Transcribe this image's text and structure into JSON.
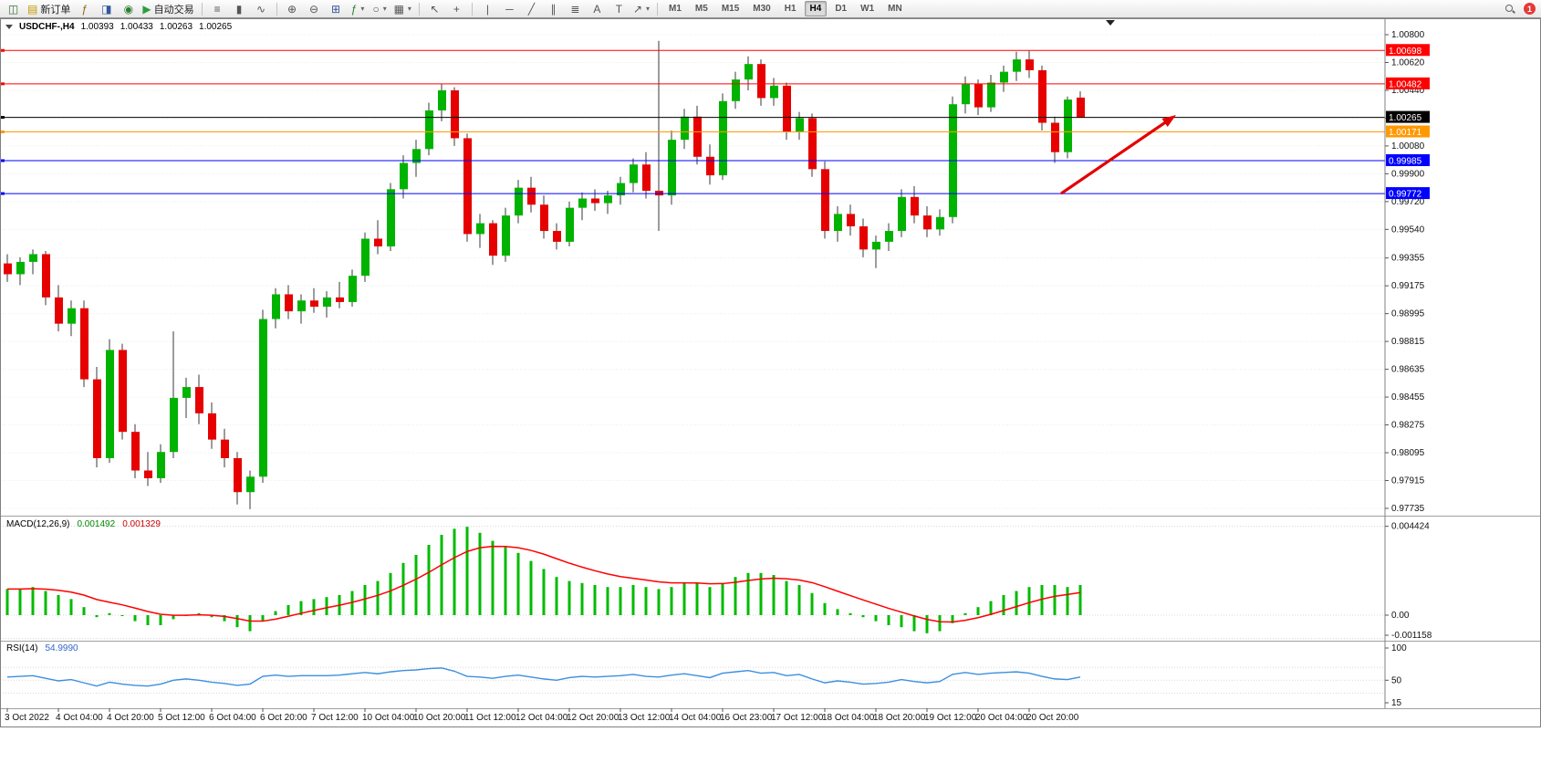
{
  "toolbar": {
    "labels": {
      "new_order": "新订单",
      "autotrading": "自动交易"
    },
    "notification_count": "1",
    "timeframes": [
      "M1",
      "M5",
      "M15",
      "M30",
      "H1",
      "H4",
      "D1",
      "W1",
      "MN"
    ],
    "active_timeframe": "H4",
    "items": [
      {
        "kind": "icon",
        "name": "charts-icon",
        "glyph": "◫",
        "color": "#3a6f3a"
      },
      {
        "kind": "button",
        "name": "new-order-button",
        "glyph": "▤",
        "color": "#c59a00",
        "label_key": "new_order"
      },
      {
        "kind": "icon",
        "name": "indicator-list-icon",
        "glyph": "ƒ",
        "color": "#8a6d00"
      },
      {
        "kind": "icon",
        "name": "market-watch-icon",
        "glyph": "◨",
        "color": "#33589c"
      },
      {
        "kind": "icon",
        "name": "navigator-icon",
        "glyph": "◉",
        "color": "#2e7d32"
      },
      {
        "kind": "button",
        "name": "autotrading-button",
        "glyph": "▶",
        "color": "#2e9e3f",
        "label_key": "autotrading"
      },
      {
        "kind": "sep"
      },
      {
        "kind": "icon",
        "name": "bar-chart-icon",
        "glyph": "≡"
      },
      {
        "kind": "icon",
        "name": "candlestick-chart-icon",
        "glyph": "▮"
      },
      {
        "kind": "icon",
        "name": "line-chart-icon",
        "glyph": "∿"
      },
      {
        "kind": "sep"
      },
      {
        "kind": "icon",
        "name": "zoom-in-icon",
        "glyph": "⊕"
      },
      {
        "kind": "icon",
        "name": "zoom-out-icon",
        "glyph": "⊖"
      },
      {
        "kind": "icon",
        "name": "tile-windows-icon",
        "glyph": "⊞",
        "color": "#33589c"
      },
      {
        "kind": "icon",
        "name": "indicators-icon",
        "glyph": "ƒ",
        "color": "#2e7d32",
        "dropdown": true
      },
      {
        "kind": "icon",
        "name": "periods-icon",
        "glyph": "○",
        "dropdown": true
      },
      {
        "kind": "icon",
        "name": "templates-icon",
        "glyph": "▦",
        "dropdown": true
      },
      {
        "kind": "sep"
      },
      {
        "kind": "icon",
        "name": "cursor-icon",
        "glyph": "↖"
      },
      {
        "kind": "icon",
        "name": "crosshair-icon",
        "glyph": "+"
      },
      {
        "kind": "sep"
      },
      {
        "kind": "icon",
        "name": "vertical-line-icon",
        "glyph": "|"
      },
      {
        "kind": "icon",
        "name": "horizontal-line-icon",
        "glyph": "─"
      },
      {
        "kind": "icon",
        "name": "trendline-icon",
        "glyph": "╱"
      },
      {
        "kind": "icon",
        "name": "equidistant-channel-icon",
        "glyph": "∥"
      },
      {
        "kind": "icon",
        "name": "fibonacci-icon",
        "glyph": "≣"
      },
      {
        "kind": "icon",
        "name": "text-icon",
        "glyph": "A"
      },
      {
        "kind": "icon",
        "name": "text-label-icon",
        "glyph": "T"
      },
      {
        "kind": "icon",
        "name": "arrows-icon",
        "glyph": "↗",
        "dropdown": true
      },
      {
        "kind": "sep"
      },
      {
        "kind": "timeframes"
      },
      {
        "kind": "spacer"
      },
      {
        "kind": "icon",
        "name": "search-icon"
      },
      {
        "kind": "badge",
        "name": "notification-badge",
        "label_key": "notification_count"
      }
    ]
  },
  "chart": {
    "symbol_period": "USDCHF-,H4",
    "open": "1.00393",
    "high": "1.00433",
    "low": "1.00263",
    "close": "1.00265"
  },
  "chart_data": {
    "type": "candlestick",
    "symbol": "USDCHF-",
    "timeframe": "H4",
    "style": {
      "bull_color": "#00b300",
      "bear_color": "#e60000",
      "wick_color": "#3a3a3a",
      "macd_bar_color": "#00bb00",
      "macd_signal_color": "#ff0000",
      "rsi_line_color": "#3c8fde",
      "arrow_color": "#e30000"
    },
    "price_axis": {
      "ticks": [
        "1.00800",
        "1.00620",
        "1.00440",
        "1.00260",
        "1.00080",
        "0.99900",
        "0.99720",
        "0.99540",
        "0.99355",
        "0.99175",
        "0.98995",
        "0.98815",
        "0.98635",
        "0.98455",
        "0.98275",
        "0.98095",
        "0.97915",
        "0.97735"
      ]
    },
    "hlines": [
      {
        "price": 1.00698,
        "color": "#ff0000",
        "label": "1.00698"
      },
      {
        "price": 1.00482,
        "color": "#ff0000",
        "label": "1.00482"
      },
      {
        "price": 1.00265,
        "color": "#000000",
        "label": "1.00265"
      },
      {
        "price": 1.00171,
        "color": "#ff9900",
        "label": "1.00171"
      },
      {
        "price": 0.99985,
        "color": "#0000ff",
        "label": "0.99985"
      },
      {
        "price": 0.99772,
        "color": "#0000ff",
        "label": "0.99772"
      }
    ],
    "arrow": {
      "from_index": 82.5,
      "from_price": 0.99772,
      "to_index": 91.5,
      "to_price": 1.0028
    },
    "candles": [
      [
        0.9932,
        0.9938,
        0.992,
        0.9925
      ],
      [
        0.9925,
        0.9936,
        0.9918,
        0.9933
      ],
      [
        0.9933,
        0.9941,
        0.9925,
        0.9938
      ],
      [
        0.9938,
        0.994,
        0.9905,
        0.991
      ],
      [
        0.991,
        0.9918,
        0.9888,
        0.9893
      ],
      [
        0.9893,
        0.9908,
        0.9885,
        0.9903
      ],
      [
        0.9903,
        0.9908,
        0.9852,
        0.9857
      ],
      [
        0.9857,
        0.9865,
        0.98,
        0.9806
      ],
      [
        0.9806,
        0.9883,
        0.9803,
        0.9876
      ],
      [
        0.9876,
        0.988,
        0.9818,
        0.9823
      ],
      [
        0.9823,
        0.9828,
        0.9793,
        0.9798
      ],
      [
        0.9798,
        0.981,
        0.9788,
        0.9793
      ],
      [
        0.9793,
        0.9815,
        0.979,
        0.981
      ],
      [
        0.981,
        0.9888,
        0.9806,
        0.9845
      ],
      [
        0.9845,
        0.9858,
        0.9832,
        0.9852
      ],
      [
        0.9852,
        0.986,
        0.9828,
        0.9835
      ],
      [
        0.9835,
        0.9842,
        0.9812,
        0.9818
      ],
      [
        0.9818,
        0.9825,
        0.98,
        0.9806
      ],
      [
        0.9806,
        0.981,
        0.9776,
        0.9784
      ],
      [
        0.9784,
        0.9798,
        0.9773,
        0.9794
      ],
      [
        0.9794,
        0.9902,
        0.979,
        0.9896
      ],
      [
        0.9896,
        0.9916,
        0.989,
        0.9912
      ],
      [
        0.9912,
        0.9918,
        0.9896,
        0.9901
      ],
      [
        0.9901,
        0.9912,
        0.9893,
        0.9908
      ],
      [
        0.9908,
        0.9916,
        0.99,
        0.9904
      ],
      [
        0.9904,
        0.9914,
        0.9897,
        0.991
      ],
      [
        0.991,
        0.992,
        0.9903,
        0.9907
      ],
      [
        0.9907,
        0.9928,
        0.9904,
        0.9924
      ],
      [
        0.9924,
        0.9952,
        0.992,
        0.9948
      ],
      [
        0.9948,
        0.996,
        0.9938,
        0.9943
      ],
      [
        0.9943,
        0.9984,
        0.994,
        0.998
      ],
      [
        0.998,
        1.0002,
        0.9974,
        0.9997
      ],
      [
        0.9997,
        1.0012,
        0.9988,
        1.0006
      ],
      [
        1.0006,
        1.0036,
        1.0002,
        1.0031
      ],
      [
        1.0031,
        1.0048,
        1.0024,
        1.0044
      ],
      [
        1.0044,
        1.0046,
        1.0008,
        1.0013
      ],
      [
        1.0013,
        1.0016,
        0.9946,
        0.9951
      ],
      [
        0.9951,
        0.9964,
        0.9942,
        0.9958
      ],
      [
        0.9958,
        0.996,
        0.9931,
        0.9937
      ],
      [
        0.9937,
        0.9968,
        0.9933,
        0.9963
      ],
      [
        0.9963,
        0.9986,
        0.9958,
        0.9981
      ],
      [
        0.9981,
        0.9988,
        0.9965,
        0.997
      ],
      [
        0.997,
        0.9976,
        0.9948,
        0.9953
      ],
      [
        0.9953,
        0.9958,
        0.9941,
        0.9946
      ],
      [
        0.9946,
        0.9972,
        0.9943,
        0.9968
      ],
      [
        0.9968,
        0.9978,
        0.996,
        0.9974
      ],
      [
        0.9974,
        0.998,
        0.9966,
        0.9971
      ],
      [
        0.9971,
        0.9979,
        0.9964,
        0.9976
      ],
      [
        0.9976,
        0.9988,
        0.997,
        0.9984
      ],
      [
        0.9984,
        1.0,
        0.9978,
        0.9996
      ],
      [
        0.9996,
        1.0004,
        0.9974,
        0.9979
      ],
      [
        0.9979,
        1.0076,
        0.9953,
        0.9976
      ],
      [
        0.9976,
        1.0018,
        0.997,
        1.0012
      ],
      [
        1.0012,
        1.0032,
        1.0006,
        1.0027
      ],
      [
        1.0027,
        1.0034,
        0.9996,
        1.0001
      ],
      [
        1.0001,
        1.0009,
        0.9983,
        0.9989
      ],
      [
        0.9989,
        1.0042,
        0.9986,
        1.0037
      ],
      [
        1.0037,
        1.0056,
        1.0032,
        1.0051
      ],
      [
        1.0051,
        1.0066,
        1.0044,
        1.0061
      ],
      [
        1.0061,
        1.0064,
        1.0034,
        1.0039
      ],
      [
        1.0039,
        1.0052,
        1.0034,
        1.0047
      ],
      [
        1.0047,
        1.0049,
        1.0012,
        1.0017
      ],
      [
        1.0017,
        1.003,
        1.0012,
        1.0026
      ],
      [
        1.0026,
        1.0029,
        0.9988,
        0.9993
      ],
      [
        0.9993,
        0.9998,
        0.9948,
        0.9953
      ],
      [
        0.9953,
        0.9969,
        0.9946,
        0.9964
      ],
      [
        0.9964,
        0.997,
        0.995,
        0.9956
      ],
      [
        0.9956,
        0.9961,
        0.9936,
        0.9941
      ],
      [
        0.9941,
        0.995,
        0.9929,
        0.9946
      ],
      [
        0.9946,
        0.9958,
        0.994,
        0.9953
      ],
      [
        0.9953,
        0.998,
        0.9949,
        0.9975
      ],
      [
        0.9975,
        0.9982,
        0.9958,
        0.9963
      ],
      [
        0.9963,
        0.9969,
        0.9949,
        0.9954
      ],
      [
        0.9954,
        0.9967,
        0.995,
        0.9962
      ],
      [
        0.9962,
        1.004,
        0.9958,
        1.0035
      ],
      [
        1.0035,
        1.0053,
        1.0029,
        1.0048
      ],
      [
        1.0048,
        1.0051,
        1.0028,
        1.0033
      ],
      [
        1.0033,
        1.0054,
        1.003,
        1.0049
      ],
      [
        1.0049,
        1.006,
        1.0043,
        1.0056
      ],
      [
        1.0056,
        1.0069,
        1.005,
        1.0064
      ],
      [
        1.0064,
        1.00695,
        1.0052,
        1.0057
      ],
      [
        1.0057,
        1.006,
        1.0018,
        1.0023
      ],
      [
        1.0023,
        1.0027,
        0.9997,
        1.0004
      ],
      [
        1.0004,
        1.004,
        1.0,
        1.0038
      ],
      [
        1.00393,
        1.00433,
        1.00263,
        1.00265
      ]
    ],
    "time_labels": [
      "3 Oct 2022",
      "4 Oct 04:00",
      "4 Oct 20:00",
      "5 Oct 12:00",
      "6 Oct 04:00",
      "6 Oct 20:00",
      "7 Oct 12:00",
      "10 Oct 04:00",
      "10 Oct 20:00",
      "11 Oct 12:00",
      "12 Oct 04:00",
      "12 Oct 20:00",
      "13 Oct 12:00",
      "14 Oct 04:00",
      "16 Oct 23:00",
      "17 Oct 12:00",
      "18 Oct 04:00",
      "18 Oct 20:00",
      "19 Oct 12:00",
      "20 Oct 04:00",
      "20 Oct 20:00"
    ],
    "macd": {
      "label": "MACD(12,26,9)",
      "value1": "0.001492",
      "value2": "0.001329",
      "axis": [
        "0.004424",
        "0.00",
        "-0.001158"
      ],
      "max": 0.004424,
      "min": -0.001158,
      "histogram": [
        0.0013,
        0.0013,
        0.0014,
        0.0012,
        0.001,
        0.0008,
        0.0004,
        -0.0001,
        0.0001,
        0.0,
        -0.0003,
        -0.0005,
        -0.0005,
        -0.0002,
        0.0,
        0.0001,
        -0.0001,
        -0.0003,
        -0.0006,
        -0.0008,
        -0.0003,
        0.0002,
        0.0005,
        0.0007,
        0.0008,
        0.0009,
        0.001,
        0.0012,
        0.0015,
        0.0017,
        0.0021,
        0.0026,
        0.003,
        0.0035,
        0.004,
        0.0043,
        0.0044,
        0.0041,
        0.0037,
        0.0034,
        0.0031,
        0.0027,
        0.0023,
        0.0019,
        0.0017,
        0.0016,
        0.0015,
        0.0014,
        0.0014,
        0.0015,
        0.0014,
        0.0013,
        0.0014,
        0.0016,
        0.0016,
        0.0014,
        0.0016,
        0.0019,
        0.0021,
        0.0021,
        0.002,
        0.0017,
        0.0015,
        0.0011,
        0.0006,
        0.0003,
        0.0001,
        -0.0001,
        -0.0003,
        -0.0005,
        -0.0006,
        -0.0008,
        -0.0009,
        -0.0008,
        -0.0004,
        0.0001,
        0.0004,
        0.0007,
        0.001,
        0.0012,
        0.0014,
        0.0015,
        0.0015,
        0.0014,
        0.0015
      ]
    },
    "rsi": {
      "label": "RSI(14)",
      "value": "54.9990",
      "axis": [
        "100",
        "50",
        "15"
      ],
      "values": [
        55,
        56,
        57,
        53,
        49,
        51,
        46,
        41,
        47,
        44,
        42,
        41,
        44,
        50,
        52,
        50,
        47,
        45,
        42,
        44,
        56,
        58,
        56,
        57,
        57,
        57,
        58,
        60,
        62,
        60,
        63,
        65,
        66,
        68,
        69,
        64,
        56,
        55,
        53,
        56,
        58,
        55,
        52,
        50,
        54,
        56,
        55,
        56,
        57,
        59,
        56,
        55,
        58,
        60,
        57,
        54,
        61,
        63,
        65,
        61,
        62,
        57,
        59,
        52,
        46,
        49,
        47,
        44,
        45,
        47,
        51,
        48,
        46,
        48,
        59,
        62,
        59,
        61,
        62,
        63,
        61,
        56,
        52,
        51,
        55
      ]
    }
  }
}
